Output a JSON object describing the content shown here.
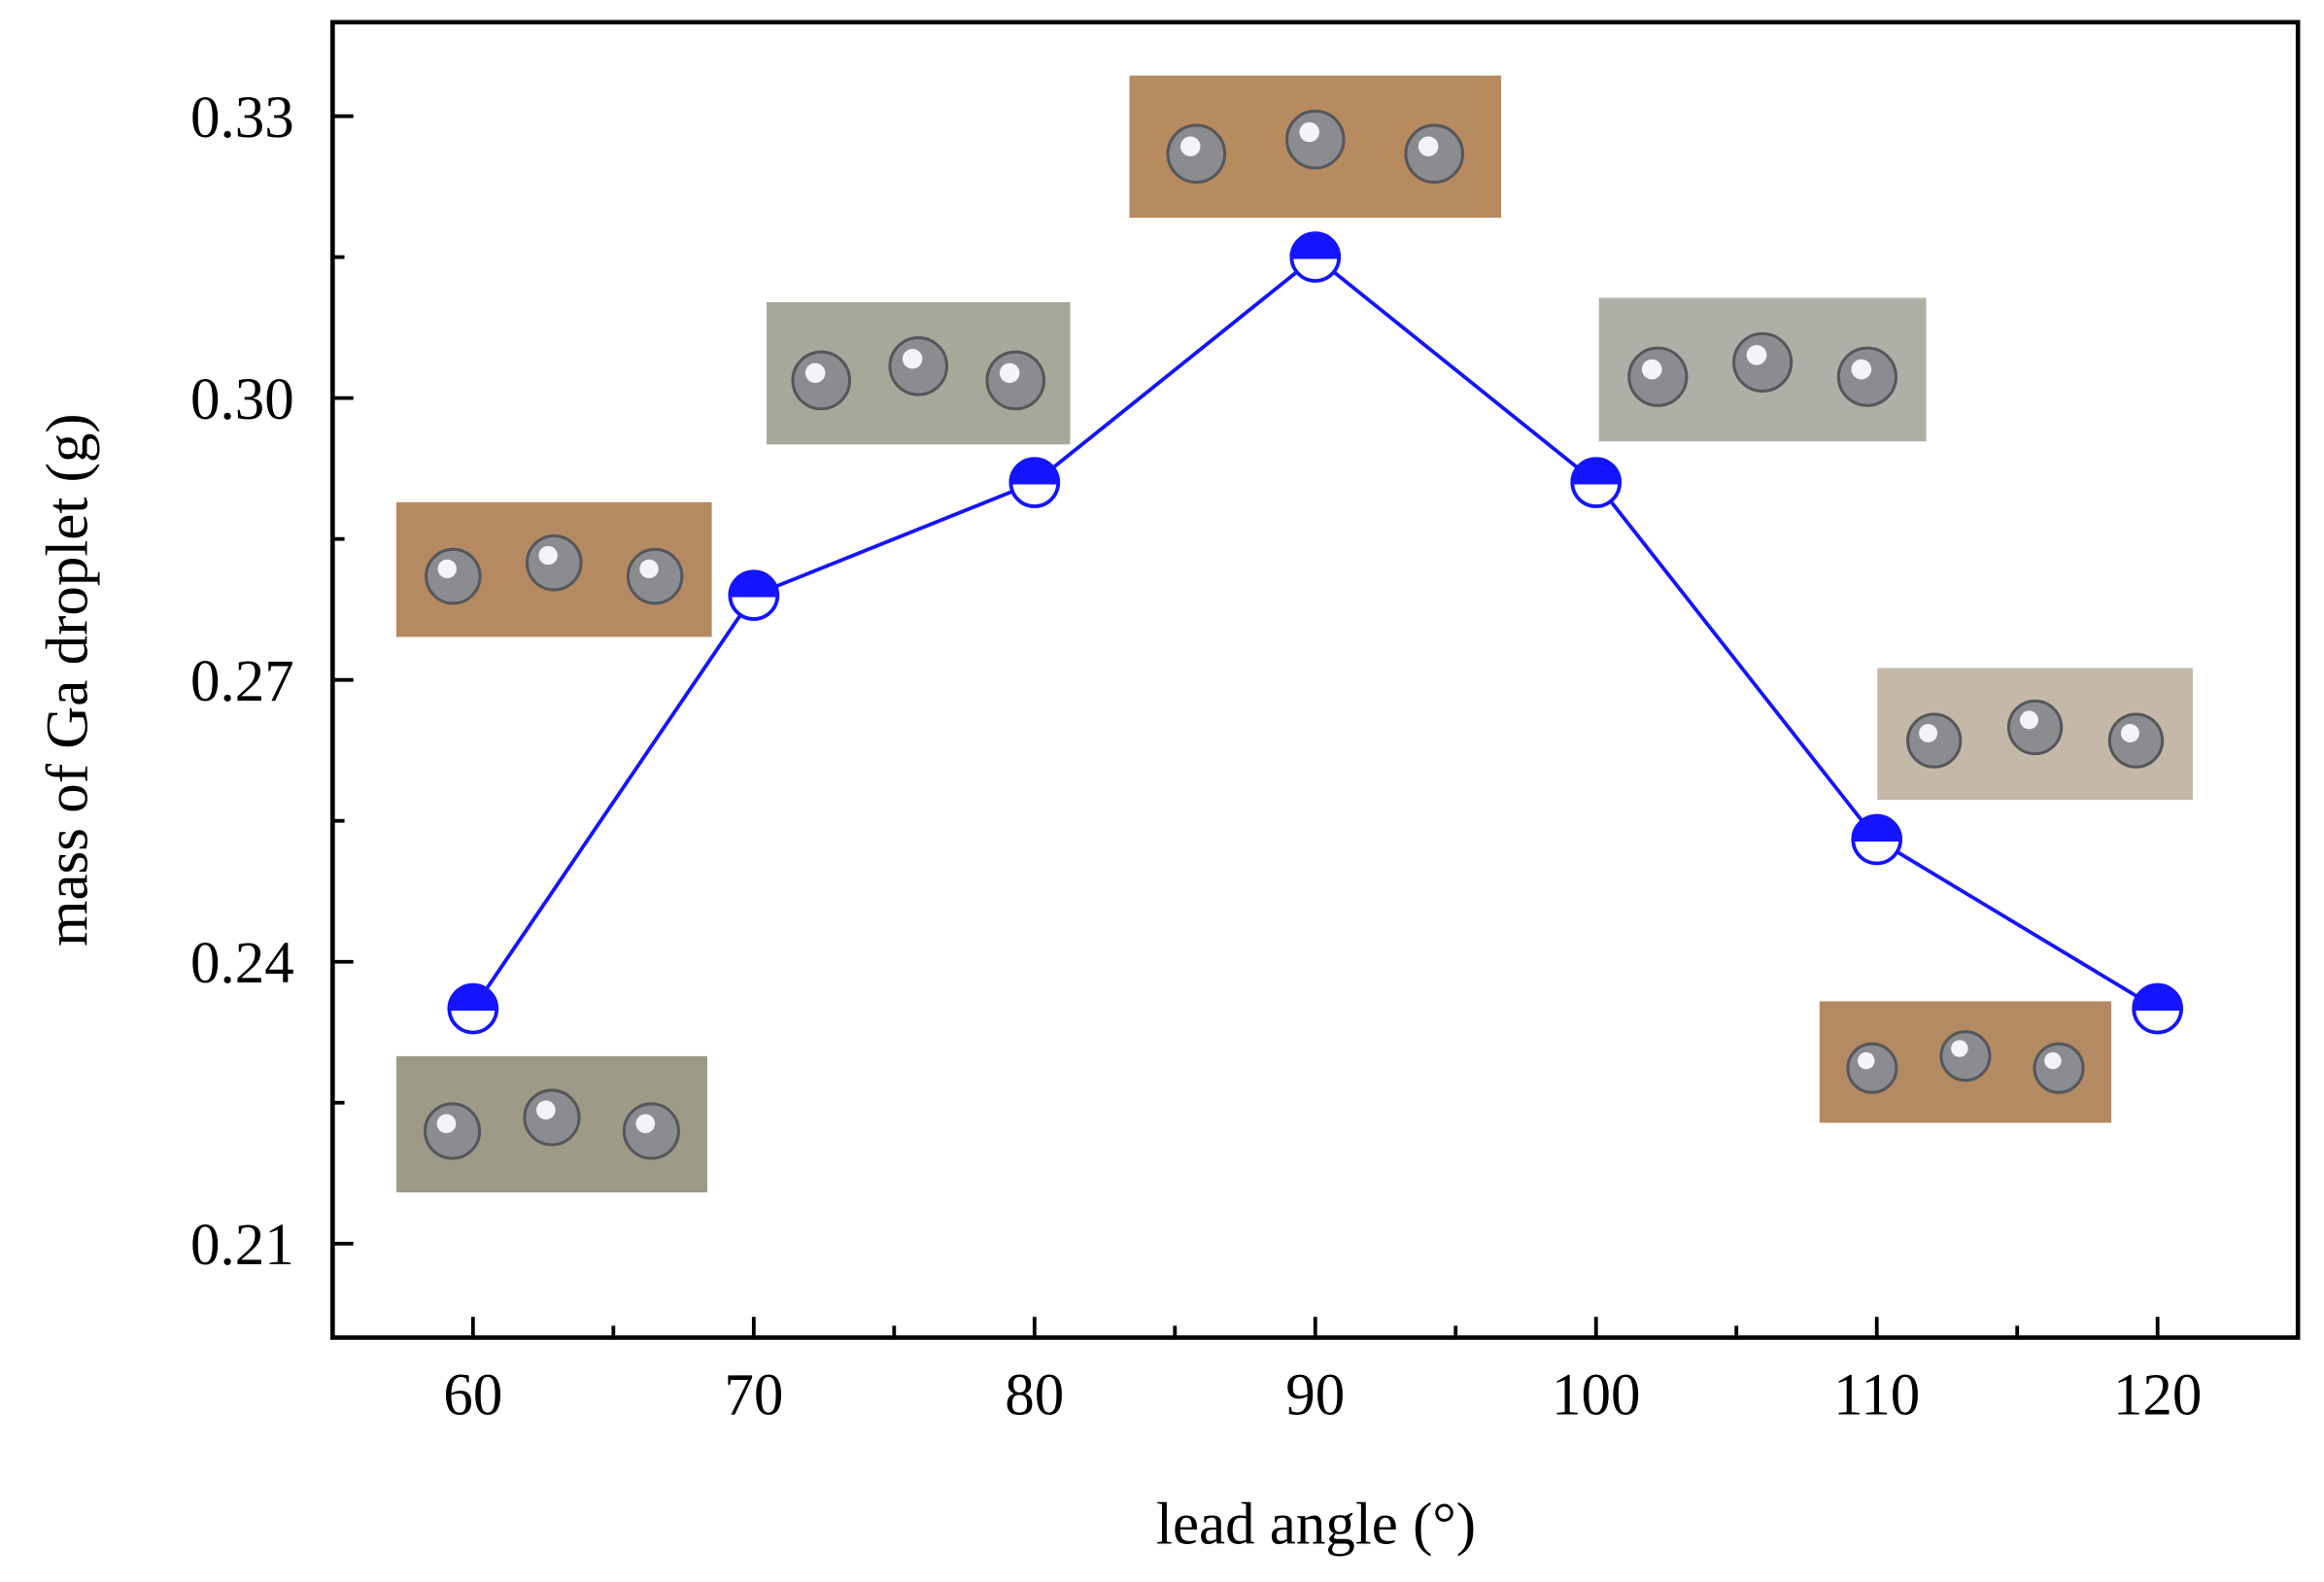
{
  "chart_data": {
    "type": "line",
    "x_label": "lead angle (°)",
    "y_label": "mass of Ga droplet (g)",
    "x": [
      60,
      70,
      80,
      90,
      100,
      110,
      120
    ],
    "series": [
      {
        "color": "#1414ff",
        "values": [
          0.235,
          0.279,
          0.291,
          0.315,
          0.291,
          0.253,
          0.235
        ]
      }
    ],
    "xlim": [
      55,
      125
    ],
    "xticks": [
      60,
      70,
      80,
      90,
      100,
      110,
      120
    ],
    "xminor": [
      65,
      75,
      85,
      95,
      105,
      115
    ],
    "ylim": [
      0.2,
      0.34
    ],
    "yticks": [
      0.21,
      0.24,
      0.27,
      {
        "value": 0.3,
        "label": "0.30"
      },
      0.33
    ],
    "yminor": [
      0.225,
      0.255,
      0.285,
      0.315
    ],
    "grid": false
  }
}
